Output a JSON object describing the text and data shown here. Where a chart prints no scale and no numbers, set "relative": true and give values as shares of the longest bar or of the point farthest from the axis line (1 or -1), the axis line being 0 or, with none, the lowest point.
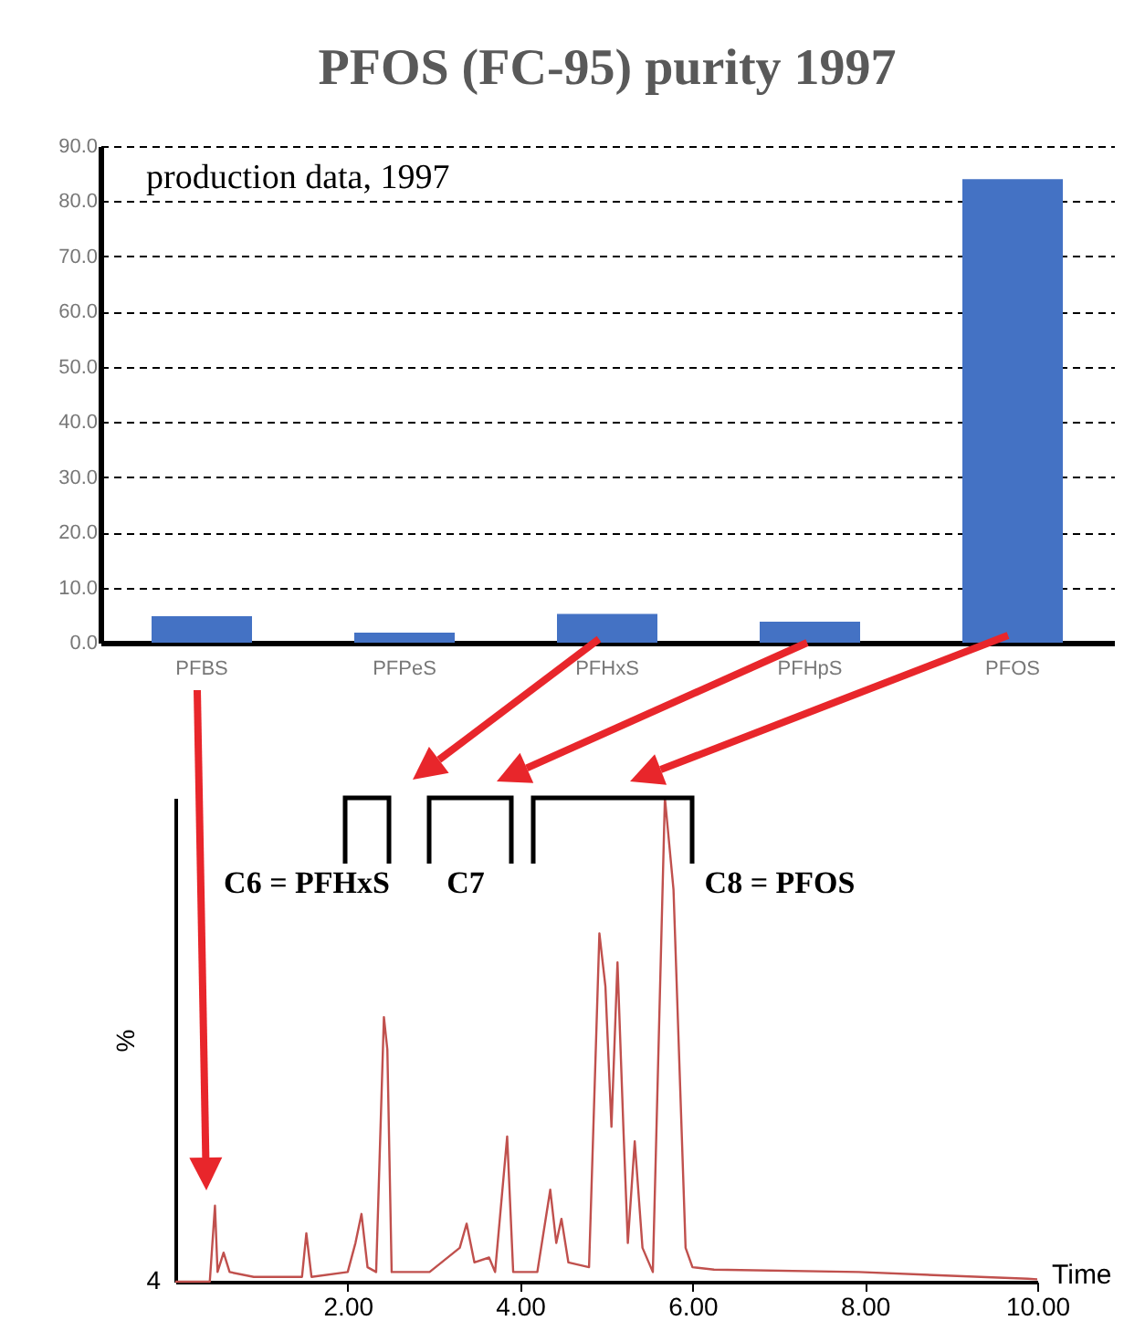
{
  "chart_data": [
    {
      "type": "bar",
      "title": "PFOS (FC-95) purity 1997",
      "categories": [
        "PFBS",
        "PFPeS",
        "PFHxS",
        "PFHpS",
        "PFOS"
      ],
      "values": [
        4.8,
        1.8,
        5.2,
        3.8,
        84.0
      ],
      "color": "#4472c4",
      "ylim": [
        0,
        90
      ],
      "yticks": [
        {
          "value": 0,
          "label": "0.0"
        },
        {
          "value": 10,
          "label": "10.0"
        },
        {
          "value": 20,
          "label": "20.0"
        },
        {
          "value": 30,
          "label": "30.0"
        },
        {
          "value": 40,
          "label": "40.0"
        },
        {
          "value": 50,
          "label": "50.0"
        },
        {
          "value": 60,
          "label": "60.0"
        },
        {
          "value": 70,
          "label": "70.0"
        },
        {
          "value": 80,
          "label": "80.0"
        },
        {
          "value": 90,
          "label": "90.0"
        }
      ],
      "grid": "y",
      "annotations": [
        "production data, 1997"
      ]
    },
    {
      "type": "line",
      "relative": true,
      "xlabel": "Time",
      "ylabel": "%",
      "xlim": [
        0,
        10
      ],
      "xticks": [
        {
          "value": 2,
          "label": "2.00"
        },
        {
          "value": 4,
          "label": "4.00"
        },
        {
          "value": 6,
          "label": "6.00"
        },
        {
          "value": 8,
          "label": "8.00"
        },
        {
          "value": 10,
          "label": "10.00"
        }
      ],
      "series": [
        {
          "color": "#c0504d",
          "x": [
            0,
            0.4,
            0.46,
            0.49,
            0.56,
            0.63,
            0.91,
            1.47,
            1.52,
            1.58,
            2.0,
            2.09,
            2.16,
            2.23,
            2.33,
            2.42,
            2.46,
            2.51,
            2.95,
            3.3,
            3.38,
            3.47,
            3.64,
            3.71,
            3.85,
            3.92,
            4.2,
            4.35,
            4.42,
            4.48,
            4.56,
            4.8,
            4.92,
            4.99,
            5.06,
            5.13,
            5.2,
            5.25,
            5.33,
            5.42,
            5.54,
            5.68,
            5.78,
            5.92,
            6.0,
            6.25,
            7.93,
            9.89,
            10
          ],
          "values": [
            0,
            0,
            0.157,
            0.02,
            0.06,
            0.02,
            0.01,
            0.01,
            0.1,
            0.01,
            0.02,
            0.08,
            0.14,
            0.03,
            0.02,
            0.547,
            0.48,
            0.02,
            0.02,
            0.07,
            0.12,
            0.04,
            0.05,
            0.02,
            0.3,
            0.02,
            0.02,
            0.19,
            0.08,
            0.13,
            0.04,
            0.03,
            0.72,
            0.61,
            0.32,
            0.66,
            0.31,
            0.08,
            0.29,
            0.07,
            0.02,
            1.0,
            0.81,
            0.07,
            0.03,
            0.025,
            0.02,
            0.006,
            0.005
          ]
        }
      ],
      "annotations": [
        "4",
        "C6 = PFHxS",
        "C7",
        "C8 = PFOS"
      ]
    }
  ]
}
